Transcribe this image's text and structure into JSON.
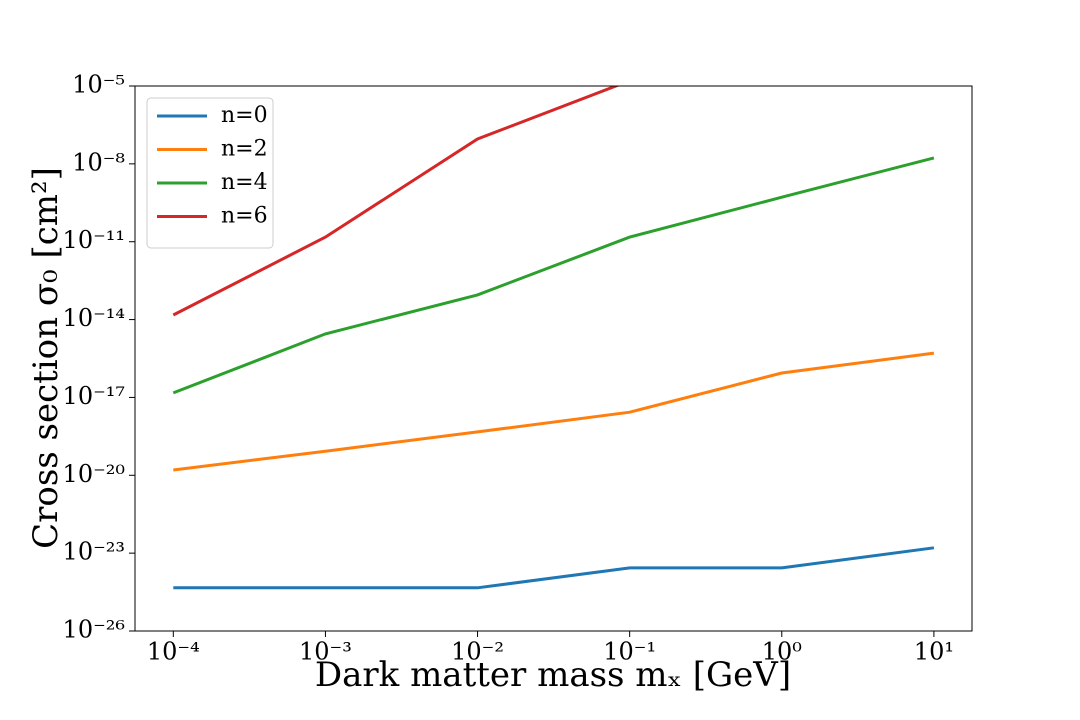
{
  "chart_data": {
    "type": "line",
    "xlabel": "Dark matter mass mₓ [GeV]",
    "ylabel": "Cross section σ₀ [cm²]",
    "x": [
      0.0001,
      0.001,
      0.01,
      0.1,
      1,
      10
    ],
    "series": [
      {
        "name": "n=0",
        "color": "#1f77b4",
        "values": [
          4.6e-25,
          4.6e-25,
          4.6e-25,
          2.7e-24,
          2.7e-24,
          1.6e-23
        ]
      },
      {
        "name": "n=2",
        "color": "#ff7f0e",
        "values": [
          1.6e-20,
          8.5e-20,
          4.7e-19,
          2.7e-18,
          8.7e-17,
          5.1e-16
        ]
      },
      {
        "name": "n=4",
        "color": "#2ca02c",
        "values": [
          1.5e-17,
          2.8e-15,
          8.9e-14,
          1.5e-11,
          5.2e-10,
          1.7e-08
        ]
      },
      {
        "name": "n=6",
        "color": "#d62728",
        "values": [
          1.5e-14,
          1.5e-11,
          9.1e-08,
          1.6e-05,
          null,
          null
        ]
      }
    ],
    "xscale": "log",
    "yscale": "log",
    "xlim": [
      5.6e-05,
      17.8
    ],
    "ylim": [
      1e-26,
      1e-05
    ],
    "xticks": [
      {
        "value": 0.0001,
        "label": "10⁻⁴"
      },
      {
        "value": 0.001,
        "label": "10⁻³"
      },
      {
        "value": 0.01,
        "label": "10⁻²"
      },
      {
        "value": 0.1,
        "label": "10⁻¹"
      },
      {
        "value": 1,
        "label": "10⁰"
      },
      {
        "value": 10,
        "label": "10¹"
      }
    ],
    "yticks": [
      {
        "value": 1e-26,
        "label": "10⁻²⁶"
      },
      {
        "value": 1e-23,
        "label": "10⁻²³"
      },
      {
        "value": 1e-20,
        "label": "10⁻²⁰"
      },
      {
        "value": 1e-17,
        "label": "10⁻¹⁷"
      },
      {
        "value": 1e-14,
        "label": "10⁻¹⁴"
      },
      {
        "value": 1e-11,
        "label": "10⁻¹¹"
      },
      {
        "value": 1e-08,
        "label": "10⁻⁸"
      },
      {
        "value": 1e-05,
        "label": "10⁻⁵"
      }
    ],
    "legend": "upper left"
  }
}
